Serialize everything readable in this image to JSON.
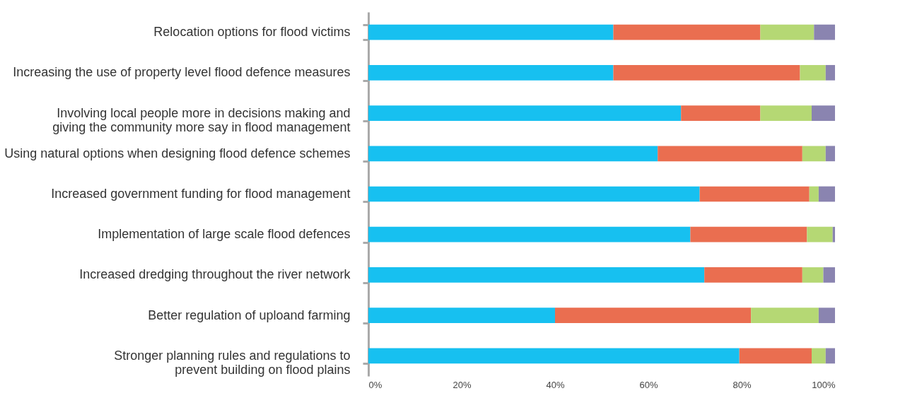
{
  "chart_data": {
    "type": "bar",
    "orientation": "horizontal",
    "stacked": true,
    "categories": [
      "Relocation options for flood victims",
      "Increasing the use of property level flood defence measures",
      "Involving local people more in decisions making and\ngiving the community more say in flood management",
      "Using natural options when designing flood defence schemes",
      "Increased government funding for flood management",
      "Implementation of large scale flood defences",
      "Increased dredging throughout the river network",
      "Better regulation of uploand farming",
      "Stronger planning rules and regulations to\nprevent building on flood plains"
    ],
    "series": [
      {
        "color": "#17c0f0",
        "values": [
          52.5,
          52.5,
          67,
          62,
          71,
          69,
          72,
          40,
          79.5
        ]
      },
      {
        "color": "#ea6e50",
        "values": [
          31.5,
          40,
          17,
          31,
          23.5,
          25,
          21,
          42,
          15.5
        ]
      },
      {
        "color": "#b5d874",
        "values": [
          11.5,
          5.5,
          11,
          5,
          2,
          5.5,
          4.5,
          14.5,
          3
        ]
      },
      {
        "color": "#8a84b0",
        "values": [
          4.5,
          2,
          5,
          2,
          3.5,
          0.5,
          2.5,
          3.5,
          2
        ]
      }
    ],
    "xlim": [
      0,
      100
    ],
    "xticks": [
      {
        "value": 0,
        "label": "0%"
      },
      {
        "value": 20,
        "label": "20%"
      },
      {
        "value": 40,
        "label": "40%"
      },
      {
        "value": 60,
        "label": "60%"
      },
      {
        "value": 80,
        "label": "80%"
      },
      {
        "value": 100,
        "label": "100%"
      }
    ],
    "grid": false,
    "legend": false
  }
}
